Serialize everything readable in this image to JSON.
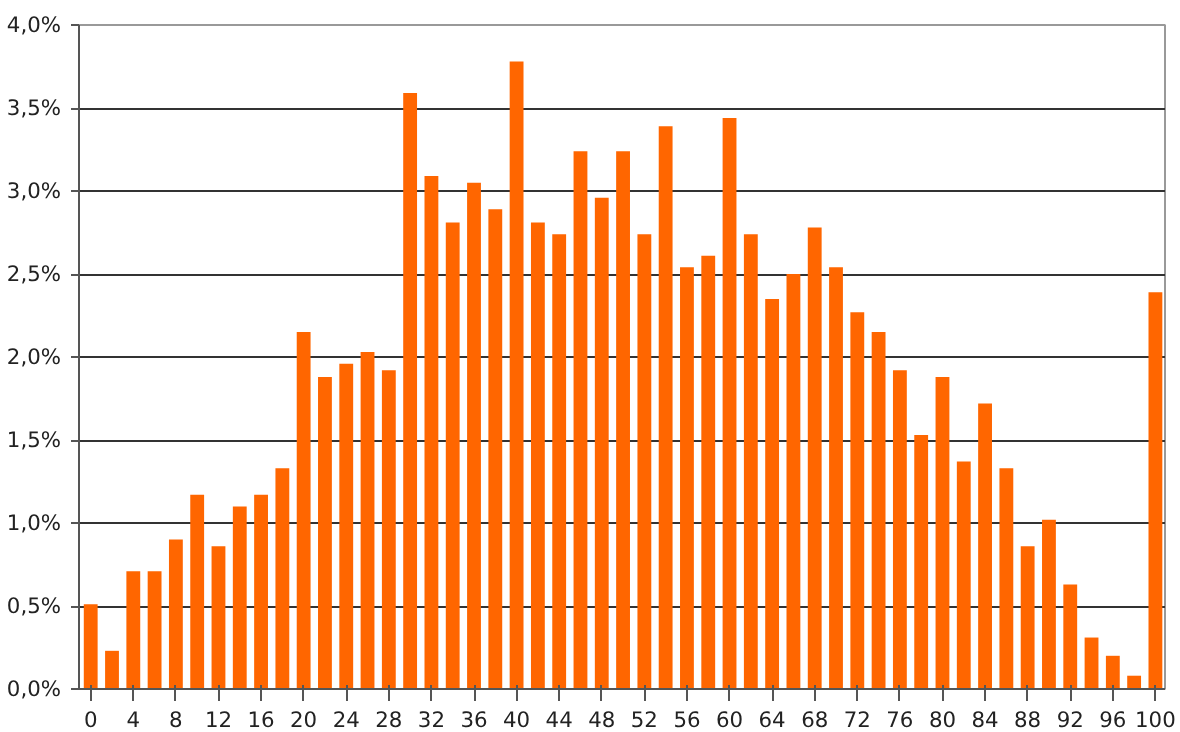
{
  "chart_data": {
    "type": "bar",
    "color": "#ff6600",
    "x": [
      0,
      2,
      4,
      6,
      8,
      10,
      12,
      14,
      16,
      18,
      20,
      22,
      24,
      26,
      28,
      30,
      32,
      34,
      36,
      38,
      40,
      42,
      44,
      46,
      48,
      50,
      52,
      54,
      56,
      58,
      60,
      62,
      64,
      66,
      68,
      70,
      72,
      74,
      76,
      78,
      80,
      82,
      84,
      86,
      88,
      90,
      92,
      94,
      96,
      98,
      100
    ],
    "values": [
      0.51,
      0.23,
      0.71,
      0.71,
      0.9,
      1.17,
      0.86,
      1.1,
      1.17,
      1.33,
      2.15,
      1.88,
      1.96,
      2.03,
      1.92,
      3.59,
      3.09,
      2.81,
      3.05,
      2.89,
      3.78,
      2.81,
      2.74,
      3.24,
      2.96,
      3.24,
      2.74,
      3.39,
      2.54,
      2.61,
      3.44,
      2.74,
      2.35,
      2.5,
      2.78,
      2.54,
      2.27,
      2.15,
      1.92,
      1.53,
      1.88,
      1.37,
      1.72,
      1.33,
      0.86,
      1.02,
      0.63,
      0.31,
      0.2,
      0.08,
      2.39
    ],
    "xlim": [
      -1.1,
      100.9
    ],
    "xticks": [
      0,
      4,
      8,
      12,
      16,
      20,
      24,
      28,
      32,
      36,
      40,
      44,
      48,
      52,
      56,
      60,
      64,
      68,
      72,
      76,
      80,
      84,
      88,
      92,
      96,
      100
    ],
    "ylim": [
      0,
      4.0
    ],
    "yticks": [
      {
        "value": 0,
        "label": "0,0%"
      },
      {
        "value": 0.5,
        "label": "0,5%"
      },
      {
        "value": 1.0,
        "label": "1,0%"
      },
      {
        "value": 1.5,
        "label": "1,5%"
      },
      {
        "value": 2.0,
        "label": "2,0%"
      },
      {
        "value": 2.5,
        "label": "2,5%"
      },
      {
        "value": 3.0,
        "label": "3,0%"
      },
      {
        "value": 3.5,
        "label": "3,5%"
      },
      {
        "value": 4.0,
        "label": "4,0%"
      }
    ],
    "grid": "y"
  }
}
